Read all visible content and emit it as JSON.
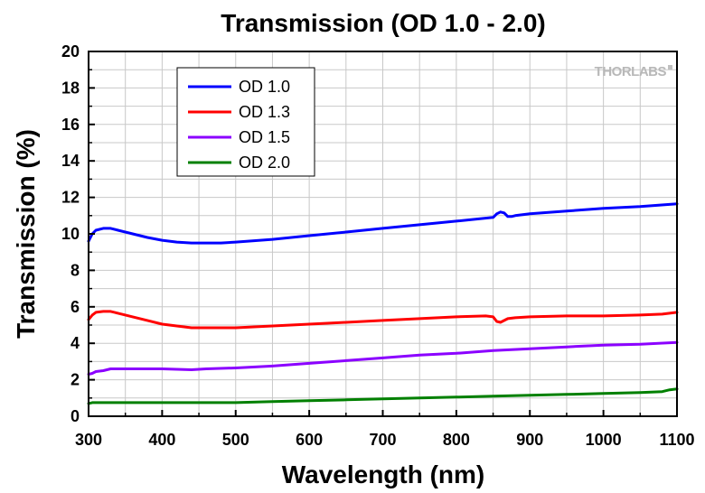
{
  "logo": {
    "text": "THORLABS"
  },
  "chart_data": {
    "type": "line",
    "title": "Transmission (OD 1.0 - 2.0)",
    "xlabel": "Wavelength (nm)",
    "ylabel": "Transmission (%)",
    "xlim": [
      300,
      1100
    ],
    "ylim": [
      0,
      20
    ],
    "xticks": [
      300,
      400,
      500,
      600,
      700,
      800,
      900,
      1000,
      1100
    ],
    "yticks": [
      0,
      2,
      4,
      6,
      8,
      10,
      12,
      14,
      16,
      18,
      20
    ],
    "grid": true,
    "legend_position": "top-left",
    "series": [
      {
        "name": "OD 1.0",
        "color": "#0000ff",
        "x": [
          300,
          305,
          310,
          320,
          330,
          340,
          360,
          380,
          400,
          420,
          440,
          460,
          480,
          500,
          550,
          600,
          650,
          700,
          750,
          800,
          850,
          855,
          860,
          865,
          870,
          875,
          880,
          900,
          950,
          1000,
          1050,
          1100
        ],
        "y": [
          9.6,
          10.0,
          10.2,
          10.3,
          10.3,
          10.2,
          10.0,
          9.8,
          9.65,
          9.55,
          9.5,
          9.5,
          9.5,
          9.55,
          9.7,
          9.9,
          10.1,
          10.3,
          10.5,
          10.7,
          10.9,
          11.1,
          11.2,
          11.15,
          10.95,
          10.95,
          11.0,
          11.1,
          11.25,
          11.4,
          11.5,
          11.65
        ]
      },
      {
        "name": "OD 1.3",
        "color": "#ff0000",
        "x": [
          300,
          305,
          310,
          320,
          330,
          340,
          360,
          380,
          400,
          420,
          440,
          460,
          480,
          500,
          550,
          600,
          650,
          700,
          750,
          800,
          840,
          850,
          855,
          860,
          870,
          880,
          900,
          950,
          1000,
          1050,
          1080,
          1100
        ],
        "y": [
          5.3,
          5.55,
          5.7,
          5.75,
          5.75,
          5.65,
          5.45,
          5.25,
          5.05,
          4.95,
          4.85,
          4.85,
          4.85,
          4.85,
          4.95,
          5.05,
          5.15,
          5.25,
          5.35,
          5.45,
          5.5,
          5.45,
          5.2,
          5.15,
          5.35,
          5.4,
          5.45,
          5.5,
          5.5,
          5.55,
          5.6,
          5.7
        ]
      },
      {
        "name": "OD 1.5",
        "color": "#8b00ff",
        "x": [
          300,
          305,
          310,
          320,
          330,
          340,
          360,
          380,
          400,
          440,
          460,
          500,
          550,
          600,
          650,
          700,
          750,
          800,
          850,
          900,
          950,
          1000,
          1050,
          1100
        ],
        "y": [
          2.3,
          2.35,
          2.45,
          2.5,
          2.6,
          2.6,
          2.6,
          2.6,
          2.6,
          2.55,
          2.6,
          2.65,
          2.75,
          2.9,
          3.05,
          3.2,
          3.35,
          3.45,
          3.6,
          3.7,
          3.8,
          3.9,
          3.95,
          4.05
        ]
      },
      {
        "name": "OD 2.0",
        "color": "#008000",
        "x": [
          300,
          305,
          310,
          320,
          350,
          400,
          450,
          500,
          550,
          600,
          650,
          700,
          750,
          800,
          850,
          900,
          950,
          1000,
          1050,
          1080,
          1090,
          1100
        ],
        "y": [
          0.7,
          0.75,
          0.75,
          0.75,
          0.75,
          0.75,
          0.75,
          0.75,
          0.8,
          0.85,
          0.9,
          0.95,
          1.0,
          1.05,
          1.1,
          1.15,
          1.2,
          1.25,
          1.3,
          1.35,
          1.45,
          1.5
        ]
      }
    ]
  }
}
